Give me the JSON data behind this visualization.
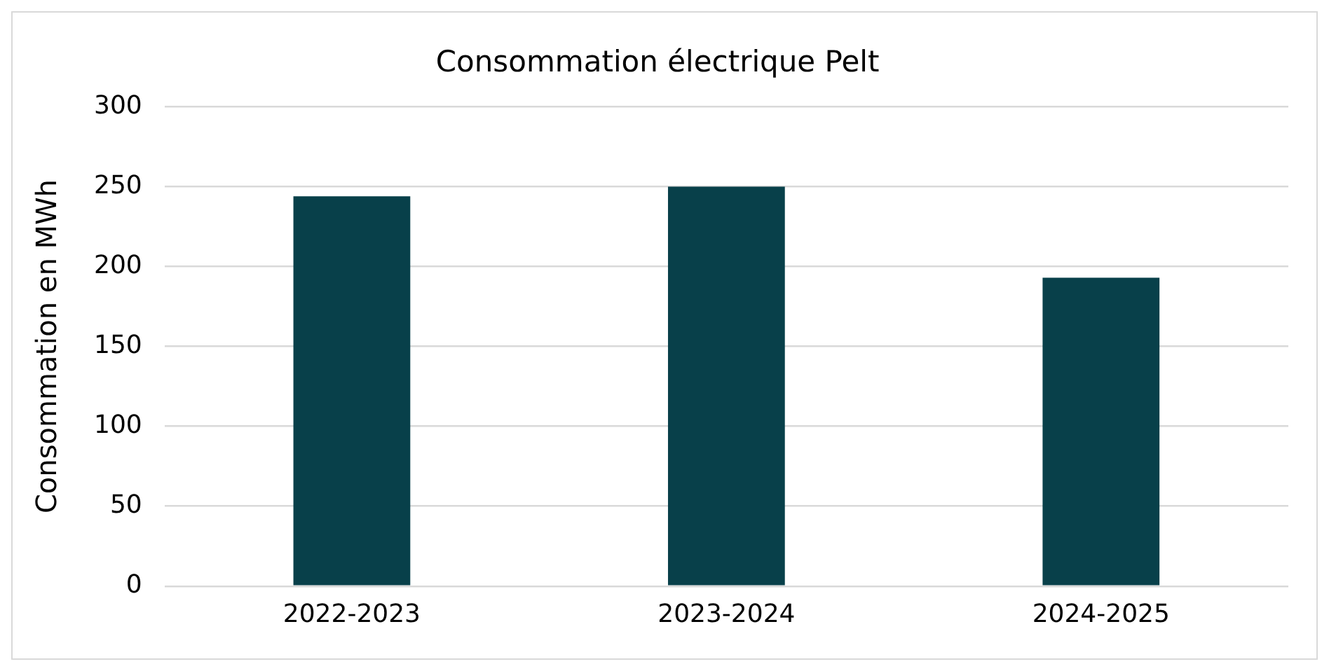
{
  "chart_data": {
    "type": "bar",
    "title": "Consommation électrique Pelt",
    "ylabel": "Consommation en MWh",
    "categories": [
      "2022-2023",
      "2023-2024",
      "2024-2025"
    ],
    "values": [
      244,
      250,
      193
    ],
    "color": "#08404a",
    "ylim": [
      0,
      300
    ],
    "yticks": [
      0,
      50,
      100,
      150,
      200,
      250,
      300
    ],
    "grid": "y",
    "legend": false
  }
}
